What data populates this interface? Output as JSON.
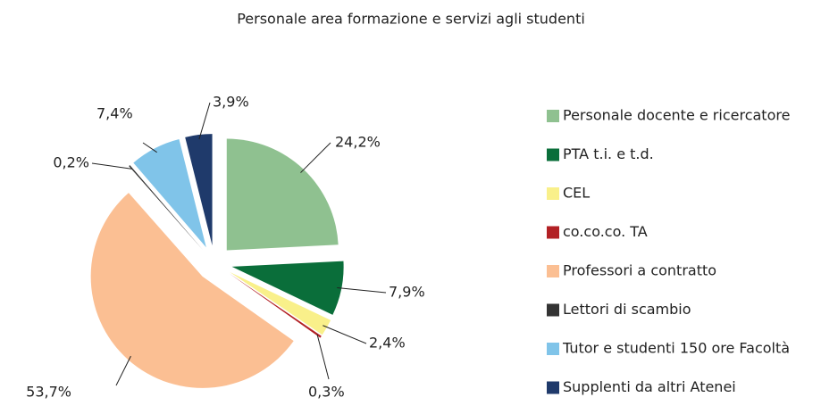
{
  "chart_data": {
    "type": "pie",
    "title": "Personale area formazione e servizi agli studenti",
    "categories": [
      "Personale docente e ricercatore",
      "PTA t.i. e t.d.",
      "CEL",
      "co.co.co. TA",
      "Professori a contratto",
      "Lettori di scambio",
      "Tutor e studenti 150 ore Facoltà",
      "Supplenti da altri Atenei"
    ],
    "values": [
      24.2,
      7.9,
      2.4,
      0.3,
      53.7,
      0.2,
      7.4,
      3.9
    ],
    "value_labels": [
      "24,2%",
      "7,9%",
      "2,4%",
      "0,3%",
      "53,7%",
      "0,2%",
      "7,4%",
      "3,9%"
    ],
    "colors": [
      "#8fc190",
      "#0a6e3a",
      "#f9f08a",
      "#b22024",
      "#fbbf93",
      "#333333",
      "#80c4e9",
      "#1f3a6b"
    ],
    "legend": "right"
  }
}
